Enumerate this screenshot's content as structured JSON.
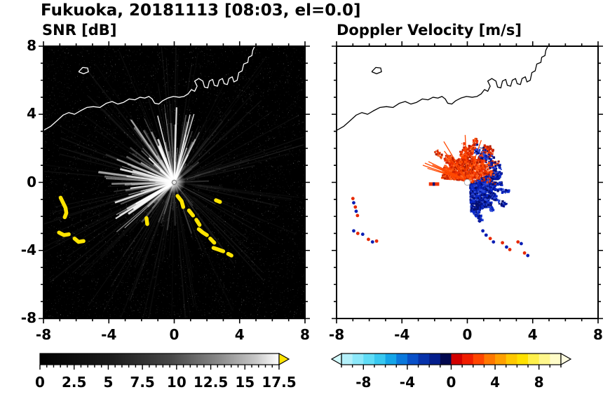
{
  "figure": {
    "title": "Fukuoka, 20181113 [08:03, el=0.0]",
    "background": "#ffffff"
  },
  "chart_data": [
    {
      "id": "snr",
      "type": "heatmap",
      "title": "SNR [dB]",
      "xlim": [
        -8,
        8
      ],
      "ylim": [
        -8,
        8
      ],
      "xticks": [
        -8,
        -4,
        0,
        4,
        8
      ],
      "yticks": [
        8,
        4,
        0,
        -4,
        -8
      ],
      "minor_tick_step": 1,
      "background_color": "#000000",
      "radar_center": [
        0,
        0
      ],
      "bright_fan_deg": [
        55,
        235
      ],
      "clutter_color": "#ffe400",
      "clutter_polylines": [
        [
          [
            -6.95,
            -0.9
          ],
          [
            -6.8,
            -1.2
          ],
          [
            -6.65,
            -1.5
          ],
          [
            -6.6,
            -1.8
          ],
          [
            -6.7,
            -2.05
          ]
        ],
        [
          [
            -7.05,
            -2.95
          ],
          [
            -6.75,
            -3.1
          ],
          [
            -6.45,
            -3.05
          ]
        ],
        [
          [
            -6.1,
            -3.3
          ],
          [
            -5.85,
            -3.5
          ],
          [
            -5.55,
            -3.45
          ]
        ],
        [
          [
            0.2,
            -0.8
          ],
          [
            0.45,
            -1.1
          ],
          [
            0.55,
            -1.45
          ]
        ],
        [
          [
            0.9,
            -1.65
          ],
          [
            1.15,
            -1.95
          ]
        ],
        [
          [
            1.35,
            -2.2
          ],
          [
            1.55,
            -2.5
          ]
        ],
        [
          [
            1.5,
            -2.75
          ],
          [
            1.75,
            -2.95
          ],
          [
            2.0,
            -3.1
          ]
        ],
        [
          [
            2.2,
            -3.3
          ],
          [
            2.45,
            -3.55
          ]
        ],
        [
          [
            2.4,
            -3.85
          ],
          [
            2.7,
            -3.95
          ],
          [
            3.0,
            -4.05
          ]
        ],
        [
          [
            3.3,
            -4.2
          ],
          [
            3.5,
            -4.3
          ]
        ],
        [
          [
            2.55,
            -1.05
          ],
          [
            2.8,
            -1.15
          ]
        ],
        [
          [
            -1.7,
            -2.1
          ],
          [
            -1.65,
            -2.45
          ]
        ]
      ],
      "colorbar": {
        "range": [
          0,
          17.5
        ],
        "tick_values": [
          0,
          2.5,
          5,
          7.5,
          10,
          12.5,
          15,
          17.5
        ],
        "labels": [
          "0",
          "2.5",
          "5",
          "7.5",
          "10",
          "12.5",
          "15",
          "17.5"
        ],
        "minor_step": 0.5,
        "gradient_stops": [
          {
            "pos": 0,
            "color": "#000000"
          },
          {
            "pos": 0.3,
            "color": "#1c1c1c"
          },
          {
            "pos": 0.55,
            "color": "#484848"
          },
          {
            "pos": 0.75,
            "color": "#8a8a8a"
          },
          {
            "pos": 0.9,
            "color": "#c6c6c6"
          },
          {
            "pos": 1,
            "color": "#ffffff"
          }
        ],
        "over_arrow_color": "#ffe400"
      }
    },
    {
      "id": "velocity",
      "type": "heatmap",
      "title": "Doppler Velocity [m/s]",
      "xlim": [
        -8,
        8
      ],
      "ylim": [
        -8,
        8
      ],
      "xticks": [
        -8,
        -4,
        0,
        4,
        8
      ],
      "yticks": [
        8,
        4,
        0,
        -4,
        -8
      ],
      "minor_tick_step": 1,
      "background_color": "#ffffff",
      "radar_center": [
        0,
        0
      ],
      "red_fan": {
        "center": [
          0,
          0.1
        ],
        "deg": [
          15,
          175
        ],
        "rmax": 2.3,
        "n": 1700,
        "colors": [
          "#f03000",
          "#ff4800",
          "#d22400",
          "#ff6420",
          "#b01c00"
        ]
      },
      "blue_fan": {
        "center": [
          0.15,
          -0.05
        ],
        "deg": [
          -88,
          22
        ],
        "rmax": 2.35,
        "n": 1500,
        "colors": [
          "#0a28c8",
          "#0618a0",
          "#2e4cd8",
          "#040e6e"
        ]
      },
      "left_dash": {
        "line": [
          [
            -2.35,
            -0.1
          ],
          [
            -1.72,
            -0.1
          ]
        ],
        "color": "#f03000",
        "inner": [
          [
            -2.12,
            -0.1
          ],
          [
            -1.98,
            -0.1
          ]
        ],
        "inner_color": "#041078"
      },
      "specks": [
        [
          -7.0,
          -0.95,
          "r"
        ],
        [
          -6.95,
          -1.2,
          "b"
        ],
        [
          -6.85,
          -1.45,
          "r"
        ],
        [
          -6.8,
          -1.7,
          "b"
        ],
        [
          -6.72,
          -1.95,
          "r"
        ],
        [
          -6.95,
          -2.85,
          "b"
        ],
        [
          -6.7,
          -3.0,
          "r"
        ],
        [
          -6.4,
          -3.05,
          "b"
        ],
        [
          -6.05,
          -3.35,
          "r"
        ],
        [
          -5.8,
          -3.5,
          "b"
        ],
        [
          -5.55,
          -3.45,
          "r"
        ],
        [
          0.95,
          -2.85,
          "b"
        ],
        [
          1.15,
          -3.1,
          "b"
        ],
        [
          1.4,
          -3.3,
          "r"
        ],
        [
          1.6,
          -3.5,
          "b"
        ],
        [
          2.15,
          -3.55,
          "r"
        ],
        [
          2.4,
          -3.8,
          "b"
        ],
        [
          2.6,
          -3.95,
          "r"
        ],
        [
          3.1,
          -3.5,
          "r"
        ],
        [
          3.3,
          -3.6,
          "b"
        ],
        [
          3.5,
          -4.15,
          "r"
        ],
        [
          3.7,
          -4.3,
          "b"
        ]
      ],
      "speck_colors": {
        "r": "#e62800",
        "b": "#0a1eb4"
      },
      "colorbar": {
        "range": [
          -10,
          10
        ],
        "tick_values": [
          -8,
          -4,
          0,
          4,
          8
        ],
        "labels": [
          "-8",
          "-4",
          "0",
          "4",
          "8"
        ],
        "minor_step": 1,
        "segment_colors": [
          "#b4f0fa",
          "#8ce8fa",
          "#5fdcf6",
          "#38c8f0",
          "#14a5e8",
          "#0a78dc",
          "#0850c8",
          "#0632aa",
          "#041e8c",
          "#02094f",
          "#d20000",
          "#f01e00",
          "#ff4600",
          "#ff7800",
          "#ffa000",
          "#ffc800",
          "#ffe100",
          "#fff04b",
          "#fff78c",
          "#fffcc8"
        ],
        "under_arrow_color": "#d2fafd",
        "over_arrow_color": "#fffde0"
      }
    }
  ],
  "coastline": {
    "main": [
      [
        -8,
        3.05
      ],
      [
        -7.55,
        3.3
      ],
      [
        -7.2,
        3.6
      ],
      [
        -6.8,
        3.95
      ],
      [
        -6.45,
        4.1
      ],
      [
        -6.1,
        4.0
      ],
      [
        -5.75,
        4.2
      ],
      [
        -5.35,
        4.4
      ],
      [
        -4.95,
        4.45
      ],
      [
        -4.55,
        4.4
      ],
      [
        -4.15,
        4.65
      ],
      [
        -3.8,
        4.75
      ],
      [
        -3.45,
        4.6
      ],
      [
        -3.1,
        4.7
      ],
      [
        -2.75,
        4.9
      ],
      [
        -2.4,
        4.85
      ],
      [
        -2.1,
        5.0
      ],
      [
        -1.8,
        4.95
      ],
      [
        -1.55,
        5.05
      ],
      [
        -1.35,
        4.9
      ],
      [
        -1.2,
        4.65
      ],
      [
        -0.95,
        4.6
      ],
      [
        -0.7,
        4.8
      ],
      [
        -0.4,
        4.95
      ],
      [
        -0.05,
        5.05
      ],
      [
        0.3,
        5.0
      ],
      [
        0.6,
        5.05
      ],
      [
        0.85,
        5.2
      ],
      [
        1.05,
        5.45
      ],
      [
        1.25,
        5.35
      ],
      [
        1.4,
        5.65
      ],
      [
        1.25,
        5.95
      ],
      [
        1.5,
        6.1
      ],
      [
        1.75,
        5.95
      ],
      [
        1.85,
        5.6
      ],
      [
        2.05,
        5.55
      ],
      [
        2.15,
        5.95
      ],
      [
        2.35,
        6.05
      ],
      [
        2.45,
        5.7
      ],
      [
        2.65,
        5.65
      ],
      [
        2.75,
        6.0
      ],
      [
        2.95,
        6.1
      ],
      [
        3.05,
        5.8
      ],
      [
        3.25,
        5.75
      ],
      [
        3.35,
        6.1
      ],
      [
        3.55,
        6.2
      ],
      [
        3.65,
        5.9
      ],
      [
        3.85,
        6.0
      ],
      [
        3.95,
        6.45
      ],
      [
        4.15,
        6.55
      ],
      [
        4.25,
        6.95
      ],
      [
        4.5,
        7.05
      ],
      [
        4.55,
        7.35
      ],
      [
        4.75,
        7.45
      ],
      [
        4.8,
        7.75
      ],
      [
        4.95,
        8.05
      ]
    ],
    "island": [
      [
        -5.85,
        6.5
      ],
      [
        -5.6,
        6.75
      ],
      [
        -5.3,
        6.72
      ],
      [
        -5.25,
        6.5
      ],
      [
        -5.55,
        6.38
      ],
      [
        -5.85,
        6.5
      ]
    ]
  }
}
